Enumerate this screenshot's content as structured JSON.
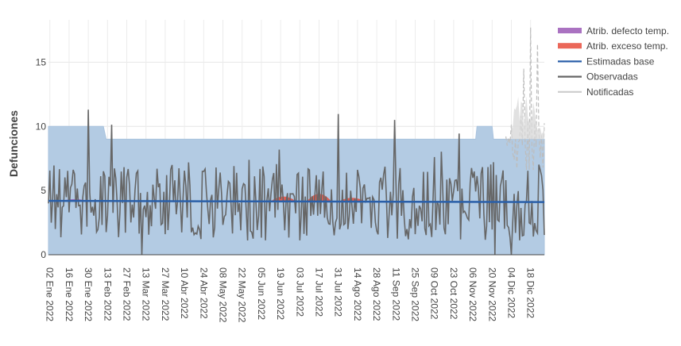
{
  "chart_data": {
    "type": "area",
    "ylabel": "Defunciones",
    "xlabel": "",
    "title": "",
    "ylim": [
      0,
      18.3
    ],
    "x_start": "2022-01-01",
    "x_end": "2022-12-28",
    "yticks": [
      0,
      5,
      10,
      15
    ],
    "xticks": [
      "02 Ene 2022",
      "16 Ene 2022",
      "30 Ene 2022",
      "13 Feb 2022",
      "27 Feb 2022",
      "13 Mar 2022",
      "27 Mar 2022",
      "10 Abr 2022",
      "24 Abr 2022",
      "08 May 2022",
      "22 May 2022",
      "05 Jun 2022",
      "19 Jun 2022",
      "03 Jul 2022",
      "17 Jul 2022",
      "31 Jul 2022",
      "14 Ago 2022",
      "28 Ago 2022",
      "11 Sep 2022",
      "25 Sep 2022",
      "09 Oct 2022",
      "23 Oct 2022",
      "06 Nov 2022",
      "20 Nov 2022",
      "04 Dic 2022",
      "18 Dic 2022"
    ],
    "grid": true,
    "legend_position": "top-right",
    "legend": [
      {
        "name": "Atrib. defecto temp.",
        "color": "#9b59b6",
        "kind": "area"
      },
      {
        "name": "Atrib. exceso temp.",
        "color": "#e74c3c",
        "kind": "area"
      },
      {
        "name": "Estimadas base",
        "color": "#2a5fa8",
        "kind": "line"
      },
      {
        "name": "Observadas",
        "color": "#666666",
        "kind": "line"
      },
      {
        "name": "Notificadas",
        "color": "#cccccc",
        "kind": "line"
      }
    ],
    "series": [
      {
        "name": "Estimadas base",
        "values": [
          [
            "2022-01-01",
            4.2
          ],
          [
            "2022-12-28",
            4.1
          ]
        ]
      },
      {
        "name": "Límite superior",
        "values": [
          [
            "2022-01-01",
            10
          ],
          [
            "2022-02-10",
            10
          ],
          [
            "2022-02-12",
            9
          ],
          [
            "2022-11-08",
            9
          ],
          [
            "2022-11-09",
            10
          ],
          [
            "2022-11-20",
            10
          ],
          [
            "2022-11-21",
            9
          ],
          [
            "2022-12-28",
            9
          ]
        ]
      },
      {
        "name": "Atrib. exceso temp.",
        "peaks": [
          [
            "2022-06-21",
            4.5
          ],
          [
            "2022-07-17",
            4.7
          ],
          [
            "2022-08-10",
            4.4
          ]
        ]
      },
      {
        "name": "Atrib. defecto temp.",
        "peaks": [
          [
            "2022-01-20",
            4.3
          ]
        ]
      },
      {
        "name": "Observadas",
        "min": 0,
        "max": 11.3,
        "mean": 4.1
      },
      {
        "name": "Notificadas",
        "peaks": [
          [
            "2022-12-13",
            14.5
          ],
          [
            "2022-12-18",
            17.7
          ],
          [
            "2022-12-23",
            16.4
          ]
        ]
      }
    ]
  }
}
